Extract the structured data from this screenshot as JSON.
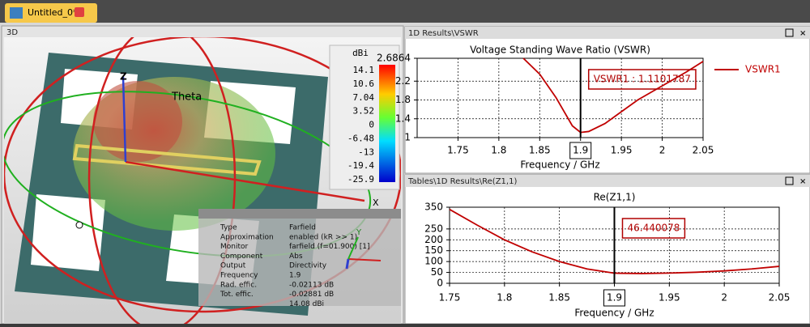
{
  "tab": {
    "title": "Untitled_0*"
  },
  "panel_3d": {
    "title": "3D",
    "axis_labels": {
      "theta": "Theta",
      "z": "Z",
      "y": "Y",
      "x": "X"
    },
    "colorbar": {
      "title": "dBi",
      "ticks": [
        "14.1",
        "10.6",
        "7.04",
        "3.52",
        "0",
        "-6.48",
        "-13",
        "-19.4",
        "-25.9"
      ]
    },
    "info": [
      [
        "Type",
        "Farfield"
      ],
      [
        "Approximation",
        "enabled (kR >> 1)"
      ],
      [
        "Monitor",
        "farfield (f=01.900) [1]"
      ],
      [
        "Component",
        "Abs"
      ],
      [
        "Output",
        "Directivity"
      ],
      [
        "Frequency",
        "1.9"
      ],
      [
        "Rad. effic.",
        "-0.02113 dB"
      ],
      [
        "Tot. effic.",
        "-0.02881 dB"
      ]
    ],
    "info_extra": "14.08 dBi"
  },
  "panels": [
    "1D Results\\VSWR",
    "Tables\\1D Results\\Re(Z1,1)"
  ],
  "chart_data": [
    {
      "type": "line",
      "title": "Voltage Standing Wave Ratio (VSWR)",
      "x_label": "Frequency / GHz",
      "x": [
        1.83,
        1.85,
        1.87,
        1.88,
        1.89,
        1.9,
        1.91,
        1.93,
        1.95,
        1.97,
        1.99,
        2.01,
        2.03,
        2.05
      ],
      "series": [
        {
          "name": "VSWR1",
          "color": "#c00000",
          "values": [
            2.6864,
            2.35,
            1.85,
            1.55,
            1.25,
            1.11,
            1.13,
            1.3,
            1.55,
            1.8,
            2.0,
            2.2,
            2.4,
            2.62
          ]
        }
      ],
      "xlim": [
        1.7,
        2.05
      ],
      "ylim": [
        1,
        2.6864
      ],
      "xticks": [
        1.75,
        1.8,
        1.85,
        1.9,
        1.95,
        2,
        2.05
      ],
      "yticks": [
        1,
        1.4,
        1.8,
        2.2,
        2.6864
      ],
      "marker_x": 1.9,
      "annotation": "VSWR1 : 1.1101787",
      "grid": true,
      "legend": "right"
    },
    {
      "type": "line",
      "title": "Re(Z1,1)",
      "x_label": "Frequency / GHz",
      "x": [
        1.75,
        1.775,
        1.8,
        1.825,
        1.85,
        1.875,
        1.9,
        1.925,
        1.95,
        1.975,
        2,
        2.025,
        2.05
      ],
      "series": [
        {
          "color": "#c00000",
          "values": [
            340,
            268,
            200,
            145,
            100,
            66,
            46.44,
            45,
            47,
            51,
            57,
            66,
            78
          ]
        }
      ],
      "xlim": [
        1.75,
        2.05
      ],
      "ylim": [
        0,
        350
      ],
      "xticks": [
        1.75,
        1.8,
        1.85,
        1.9,
        1.95,
        2,
        2.05
      ],
      "yticks": [
        0,
        50,
        100,
        150,
        200,
        250,
        350
      ],
      "marker_x": 1.9,
      "annotation": "46.440078",
      "grid": true
    }
  ]
}
